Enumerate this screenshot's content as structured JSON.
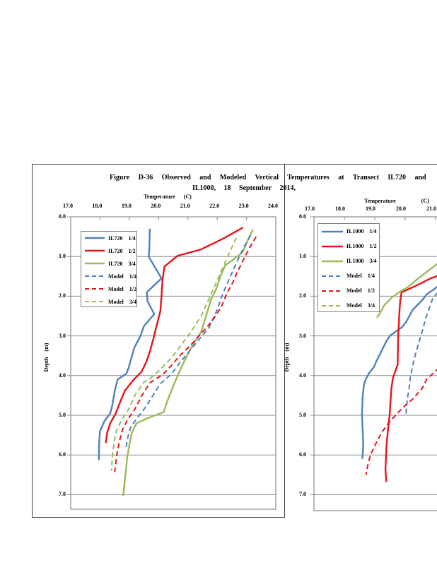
{
  "title": {
    "line1": "Figure D-36 Observed and Modeled Vertical Temperatures at Transect IL720 and",
    "line2": "IL1000, 18 September 2014,"
  },
  "colors": {
    "series_blue": "#4f81bd",
    "series_red": "#e8131b",
    "series_green": "#9bbb59",
    "grid": "#8c8c8c",
    "frame": "#3f3f3f",
    "legend_border": "#7f7f7f"
  },
  "chart_data": [
    {
      "type": "line",
      "transect": "IL720",
      "x_axis": {
        "title": "Temperature",
        "unit": "(C)",
        "range": [
          17,
          24
        ],
        "ticks": [
          "17.0",
          "18.0",
          "19.0",
          "20.0",
          "21.0",
          "22.0",
          "23.0",
          "24.0"
        ]
      },
      "y_axis": {
        "title": "Depth",
        "unit": "(m)",
        "range": [
          0,
          7.4
        ],
        "direction": "down",
        "ticks": [
          "0.0",
          "1.0",
          "2.0",
          "3.0",
          "4.0",
          "5.0",
          "6.0",
          "7.0"
        ]
      },
      "grid": "horizontal",
      "legend_position": "upper-left",
      "series": [
        {
          "name": "IL720 1/4",
          "color": "series_blue",
          "style": "solid",
          "points": [
            [
              19.7,
              0.3
            ],
            [
              19.68,
              0.9
            ],
            [
              19.66,
              1.0
            ],
            [
              20.1,
              1.55
            ],
            [
              19.6,
              1.9
            ],
            [
              19.62,
              2.12
            ],
            [
              19.85,
              2.45
            ],
            [
              19.5,
              2.75
            ],
            [
              19.38,
              3.0
            ],
            [
              19.17,
              3.3
            ],
            [
              19.07,
              3.55
            ],
            [
              18.98,
              3.8
            ],
            [
              18.9,
              3.95
            ],
            [
              18.6,
              4.1
            ],
            [
              18.5,
              4.4
            ],
            [
              18.42,
              4.75
            ],
            [
              18.35,
              4.95
            ],
            [
              18.15,
              5.15
            ],
            [
              18.0,
              5.4
            ],
            [
              17.97,
              5.7
            ],
            [
              17.96,
              6.13
            ]
          ]
        },
        {
          "name": "IL720 1/2",
          "color": "series_red",
          "style": "solid",
          "points": [
            [
              22.88,
              0.27
            ],
            [
              22.2,
              0.55
            ],
            [
              21.45,
              0.82
            ],
            [
              20.65,
              0.98
            ],
            [
              20.2,
              1.25
            ],
            [
              20.13,
              1.6
            ],
            [
              20.1,
              2.0
            ],
            [
              20.06,
              2.37
            ],
            [
              19.94,
              2.72
            ],
            [
              19.82,
              3.08
            ],
            [
              19.7,
              3.4
            ],
            [
              19.57,
              3.67
            ],
            [
              19.42,
              3.9
            ],
            [
              19.13,
              4.12
            ],
            [
              18.85,
              4.38
            ],
            [
              18.68,
              4.68
            ],
            [
              18.52,
              4.98
            ],
            [
              18.35,
              5.2
            ],
            [
              18.24,
              5.45
            ],
            [
              18.2,
              5.7
            ]
          ]
        },
        {
          "name": "IL720 3/4",
          "color": "series_green",
          "style": "solid",
          "points": [
            [
              23.22,
              0.32
            ],
            [
              23.05,
              0.58
            ],
            [
              22.88,
              0.88
            ],
            [
              22.6,
              1.05
            ],
            [
              22.28,
              1.22
            ],
            [
              22.12,
              1.48
            ],
            [
              21.96,
              1.83
            ],
            [
              21.78,
              2.1
            ],
            [
              21.6,
              2.55
            ],
            [
              21.45,
              2.9
            ],
            [
              21.15,
              3.25
            ],
            [
              20.9,
              3.6
            ],
            [
              20.65,
              4.0
            ],
            [
              20.48,
              4.3
            ],
            [
              20.32,
              4.6
            ],
            [
              20.17,
              4.92
            ],
            [
              19.6,
              5.08
            ],
            [
              19.25,
              5.2
            ],
            [
              19.08,
              5.45
            ],
            [
              19.0,
              5.75
            ],
            [
              18.93,
              6.05
            ],
            [
              18.88,
              6.4
            ],
            [
              18.84,
              6.7
            ],
            [
              18.79,
              7.03
            ]
          ]
        },
        {
          "name": "Model 1/4",
          "color": "series_blue",
          "style": "dashed",
          "points": [
            [
              23.14,
              0.47
            ],
            [
              22.92,
              0.75
            ],
            [
              22.72,
              1.06
            ],
            [
              22.54,
              1.35
            ],
            [
              22.38,
              1.62
            ],
            [
              22.22,
              1.88
            ],
            [
              22.0,
              2.34
            ],
            [
              21.73,
              2.78
            ],
            [
              21.36,
              3.11
            ],
            [
              21.0,
              3.43
            ],
            [
              20.67,
              3.73
            ],
            [
              20.43,
              3.97
            ],
            [
              20.05,
              4.21
            ],
            [
              19.81,
              4.5
            ],
            [
              19.55,
              4.8
            ],
            [
              19.28,
              5.06
            ],
            [
              19.05,
              5.3
            ],
            [
              18.95,
              5.55
            ],
            [
              18.88,
              5.85
            ]
          ]
        },
        {
          "name": "Model 1/2",
          "color": "series_red",
          "style": "dashed",
          "points": [
            [
              23.33,
              0.5
            ],
            [
              23.09,
              0.8
            ],
            [
              22.89,
              1.09
            ],
            [
              22.69,
              1.39
            ],
            [
              22.53,
              1.66
            ],
            [
              22.33,
              1.93
            ],
            [
              22.12,
              2.3
            ],
            [
              21.8,
              2.65
            ],
            [
              21.44,
              2.95
            ],
            [
              21.08,
              3.25
            ],
            [
              20.72,
              3.5
            ],
            [
              20.43,
              3.75
            ],
            [
              20.15,
              3.97
            ],
            [
              19.71,
              4.18
            ],
            [
              19.43,
              4.5
            ],
            [
              19.18,
              4.86
            ],
            [
              18.95,
              5.1
            ],
            [
              18.77,
              5.36
            ],
            [
              18.66,
              5.66
            ],
            [
              18.58,
              5.96
            ],
            [
              18.53,
              6.25
            ],
            [
              18.5,
              6.43
            ]
          ]
        },
        {
          "name": "Model 3/4",
          "color": "series_green",
          "style": "dashed",
          "points": [
            [
              22.65,
              0.53
            ],
            [
              22.42,
              0.9
            ],
            [
              22.18,
              1.3
            ],
            [
              21.94,
              1.7
            ],
            [
              21.7,
              2.1
            ],
            [
              21.45,
              2.5
            ],
            [
              21.1,
              2.9
            ],
            [
              20.75,
              3.25
            ],
            [
              20.4,
              3.58
            ],
            [
              20.05,
              3.85
            ],
            [
              19.75,
              4.05
            ],
            [
              19.48,
              4.18
            ],
            [
              19.19,
              4.5
            ],
            [
              18.97,
              4.86
            ],
            [
              18.75,
              5.1
            ],
            [
              18.56,
              5.39
            ],
            [
              18.48,
              5.69
            ],
            [
              18.43,
              5.99
            ],
            [
              18.4,
              6.28
            ],
            [
              18.39,
              6.4
            ]
          ]
        }
      ]
    },
    {
      "type": "line",
      "transect": "IL1000",
      "clipped_right_edge": true,
      "x_axis": {
        "title": "Temperature",
        "unit": "(C)",
        "range": [
          17,
          21.05
        ],
        "ticks": [
          "17.0",
          "18.0",
          "19.0",
          "20.0",
          "21.0"
        ]
      },
      "y_axis": {
        "title": "Depth",
        "unit": "(m)",
        "range": [
          0,
          7.4
        ],
        "direction": "down",
        "ticks": [
          "0.0",
          "1.0",
          "2.0",
          "3.0",
          "4.0",
          "5.0",
          "6.0",
          "7.0"
        ]
      },
      "grid": "horizontal",
      "legend_position": "upper-left",
      "series": [
        {
          "name": "IL1000 1/4",
          "color": "series_blue",
          "style": "solid",
          "points": [
            [
              21.3,
              1.62
            ],
            [
              20.94,
              1.83
            ],
            [
              20.71,
              1.95
            ],
            [
              20.56,
              2.1
            ],
            [
              20.25,
              2.34
            ],
            [
              20.13,
              2.51
            ],
            [
              20.02,
              2.66
            ],
            [
              19.9,
              2.78
            ],
            [
              19.67,
              2.9
            ],
            [
              19.51,
              2.99
            ],
            [
              19.4,
              3.11
            ],
            [
              19.28,
              3.29
            ],
            [
              19.17,
              3.46
            ],
            [
              19.05,
              3.64
            ],
            [
              18.97,
              3.79
            ],
            [
              18.81,
              3.94
            ],
            [
              18.7,
              4.1
            ],
            [
              18.64,
              4.25
            ],
            [
              18.6,
              4.56
            ],
            [
              18.58,
              4.98
            ],
            [
              18.6,
              5.34
            ],
            [
              18.62,
              5.7
            ],
            [
              18.6,
              6.04
            ],
            [
              18.58,
              6.1
            ]
          ]
        },
        {
          "name": "IL1000 1/2",
          "color": "series_red",
          "style": "solid",
          "points": [
            [
              21.3,
              1.42
            ],
            [
              20.84,
              1.55
            ],
            [
              20.4,
              1.72
            ],
            [
              20.06,
              1.84
            ],
            [
              19.88,
              1.9
            ],
            [
              19.84,
              2.1
            ],
            [
              19.81,
              2.4
            ],
            [
              19.79,
              2.7
            ],
            [
              19.77,
              3.0
            ],
            [
              19.76,
              3.4
            ],
            [
              19.75,
              3.73
            ],
            [
              19.6,
              4.05
            ],
            [
              19.55,
              4.3
            ],
            [
              19.52,
              4.6
            ],
            [
              19.49,
              4.98
            ],
            [
              19.44,
              5.34
            ],
            [
              19.39,
              5.7
            ],
            [
              19.37,
              6.04
            ],
            [
              19.35,
              6.37
            ],
            [
              19.38,
              6.68
            ]
          ]
        },
        {
          "name": "IL1000 3/4",
          "color": "series_green",
          "style": "solid",
          "points": [
            [
              21.3,
              1.08
            ],
            [
              21.06,
              1.18
            ],
            [
              20.71,
              1.39
            ],
            [
              20.4,
              1.57
            ],
            [
              20.09,
              1.77
            ],
            [
              19.82,
              1.89
            ],
            [
              19.55,
              2.04
            ],
            [
              19.32,
              2.22
            ],
            [
              19.17,
              2.43
            ],
            [
              19.07,
              2.54
            ]
          ]
        },
        {
          "name": "Model 1/4",
          "color": "series_blue",
          "style": "dashed",
          "points": [
            [
              21.3,
              1.78
            ],
            [
              21.02,
              1.95
            ],
            [
              20.9,
              2.07
            ],
            [
              20.83,
              2.22
            ],
            [
              20.75,
              2.4
            ],
            [
              20.67,
              2.57
            ],
            [
              20.6,
              2.78
            ],
            [
              20.52,
              2.99
            ],
            [
              20.44,
              3.2
            ],
            [
              20.36,
              3.4
            ],
            [
              20.29,
              3.61
            ],
            [
              20.23,
              3.82
            ],
            [
              20.17,
              4.03
            ],
            [
              20.13,
              4.32
            ],
            [
              20.08,
              4.55
            ],
            [
              20.04,
              4.8
            ],
            [
              20.03,
              4.98
            ]
          ]
        },
        {
          "name": "Model 1/2",
          "color": "series_red",
          "style": "dashed",
          "points": [
            [
              21.3,
              3.65
            ],
            [
              21.05,
              3.85
            ],
            [
              20.71,
              4.09
            ],
            [
              20.56,
              4.32
            ],
            [
              20.25,
              4.59
            ],
            [
              20.02,
              4.74
            ],
            [
              19.82,
              4.89
            ],
            [
              19.67,
              5.01
            ],
            [
              19.44,
              5.21
            ],
            [
              19.24,
              5.42
            ],
            [
              19.09,
              5.63
            ],
            [
              18.97,
              5.81
            ],
            [
              18.85,
              6.02
            ],
            [
              18.78,
              6.23
            ],
            [
              18.71,
              6.5
            ]
          ]
        },
        {
          "name": "Model 3/4",
          "color": "series_green",
          "style": "dashed",
          "points": []
        }
      ]
    }
  ]
}
